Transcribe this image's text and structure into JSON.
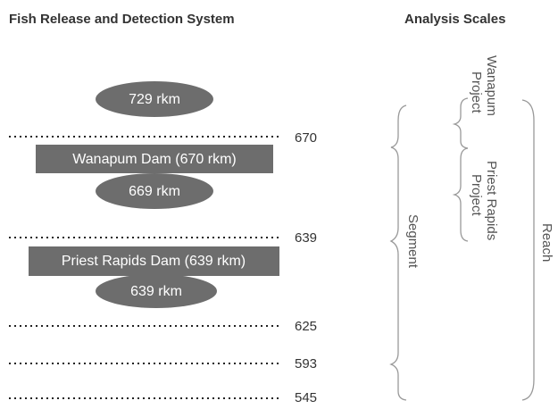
{
  "header": {
    "left_title": "Fish Release and Detection System",
    "right_title": "Analysis Scales"
  },
  "release_sites": [
    "729 rkm",
    "669 rkm",
    "639 rkm"
  ],
  "dams": [
    "Wanapum Dam (670 rkm)",
    "Priest Rapids Dam (639 rkm)"
  ],
  "detection_lines": [
    "670",
    "639",
    "625",
    "593",
    "545"
  ],
  "scales": {
    "segment": "Segment",
    "projects": [
      [
        "Wanapum",
        "Project"
      ],
      [
        "Priest Rapids",
        "Project"
      ]
    ],
    "reach": "Reach"
  }
}
